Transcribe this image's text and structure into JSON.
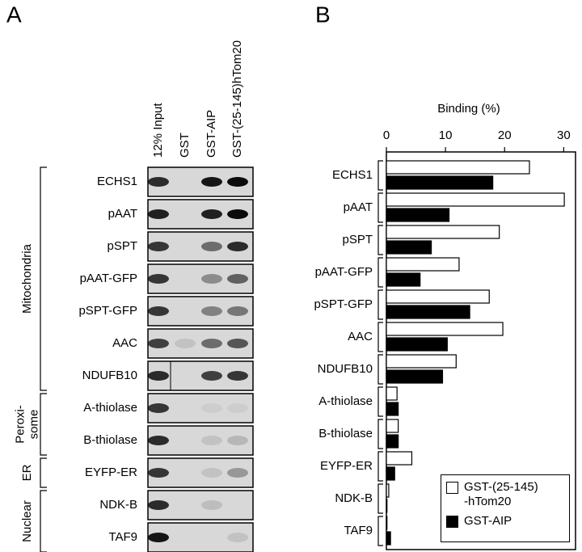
{
  "panel_labels": [
    "A",
    "B"
  ],
  "blot": {
    "lanes": [
      "12% Input",
      "GST",
      "GST-AIP",
      "GST-(25-145)hTom20"
    ],
    "rows": [
      "ECHS1",
      "pAAT",
      "pSPT",
      "pAAT-GFP",
      "pSPT-GFP",
      "AAC",
      "NDUFB10",
      "A-thiolase",
      "B-thiolase",
      "EYFP-ER",
      "NDK-B",
      "TAF9"
    ],
    "groups": [
      {
        "lines": [
          "Mitochondria"
        ],
        "rows": 7
      },
      {
        "lines": [
          "Peroxi-",
          "some"
        ],
        "rows": 2
      },
      {
        "lines": [
          "ER"
        ],
        "rows": 1
      },
      {
        "lines": [
          "Nuclear"
        ],
        "rows": 2
      }
    ]
  },
  "chart_data": {
    "type": "hbar",
    "xlabel": "Binding (%)",
    "categories": [
      "ECHS1",
      "pAAT",
      "pSPT",
      "pAAT-GFP",
      "pSPT-GFP",
      "AAC",
      "NDUFB10",
      "A-thiolase",
      "B-thiolase",
      "EYFP-ER",
      "NDK-B",
      "TAF9"
    ],
    "series": [
      {
        "name": "GST-(25-145)\n-hTom20",
        "color": "#ffffff",
        "values": [
          24.2,
          30.1,
          19.1,
          12.3,
          17.4,
          19.7,
          11.8,
          1.8,
          2.0,
          4.3,
          0.4,
          0.1
        ]
      },
      {
        "name": "GST-AIP",
        "color": "#000000",
        "values": [
          18.0,
          10.6,
          7.6,
          5.7,
          14.1,
          10.3,
          9.5,
          2.0,
          2.0,
          1.4,
          0.1,
          0.7
        ]
      }
    ],
    "xlim": [
      0,
      32
    ],
    "xticks": [
      0,
      10,
      20,
      30
    ],
    "legend": "lower right"
  }
}
